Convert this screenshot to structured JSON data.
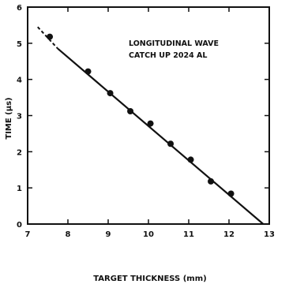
{
  "chart_data": {
    "type": "scatter",
    "annotation_lines": [
      "LONGITUDINAL WAVE",
      "CATCH UP 2024 AL"
    ],
    "xlabel": "TARGET THICKNESS (mm)",
    "ylabel": "TIME (μs)",
    "xlim": [
      7,
      13
    ],
    "ylim": [
      0,
      6
    ],
    "x_ticks": [
      7,
      8,
      9,
      10,
      11,
      12,
      13
    ],
    "x_tick_labels": [
      "7",
      "8",
      "9",
      "10",
      "11",
      "12",
      "13"
    ],
    "y_ticks": [
      0,
      1,
      2,
      3,
      4,
      5,
      6
    ],
    "y_tick_labels": [
      "0",
      "1",
      "2",
      "3",
      "4",
      "5",
      "6"
    ],
    "grid": false,
    "series": [
      {
        "kind": "points",
        "x": [
          7.55,
          8.5,
          9.05,
          9.55,
          10.05,
          10.55,
          11.05,
          11.55,
          12.05
        ],
        "y": [
          5.18,
          4.22,
          3.62,
          3.12,
          2.78,
          2.22,
          1.78,
          1.18,
          0.84
        ]
      }
    ],
    "fit_line": {
      "solid": {
        "x": [
          7.75,
          12.85
        ],
        "y": [
          4.85,
          0.0
        ]
      },
      "dashed": {
        "x": [
          7.25,
          7.75
        ],
        "y": [
          5.45,
          4.85
        ]
      }
    }
  }
}
